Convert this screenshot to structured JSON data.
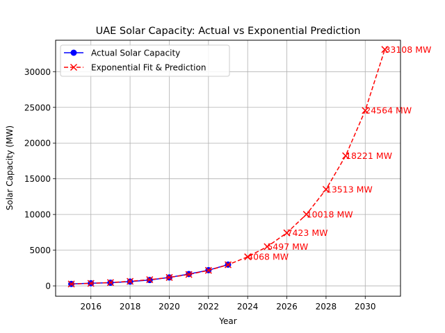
{
  "chart_data": {
    "type": "line",
    "title": "UAE Solar Capacity: Actual vs Exponential Prediction",
    "xlabel": "Year",
    "ylabel": "Solar Capacity (MW)",
    "xlim": [
      2014.2,
      2031.8
    ],
    "ylim": [
      -1450,
      34400
    ],
    "xticks": [
      2016,
      2018,
      2020,
      2022,
      2024,
      2026,
      2028,
      2030
    ],
    "yticks": [
      0,
      5000,
      10000,
      15000,
      20000,
      25000,
      30000
    ],
    "grid": true,
    "legend_position": "upper-left",
    "series": [
      {
        "name": "Actual Solar Capacity",
        "color": "#0000ff",
        "style": "solid",
        "marker": "circle",
        "x": [
          2015,
          2016,
          2017,
          2018,
          2019,
          2020,
          2021,
          2022,
          2023
        ],
        "y": [
          270,
          370,
          440,
          600,
          820,
          1180,
          1660,
          2200,
          2980
        ]
      },
      {
        "name": "Exponential Fit & Prediction",
        "color": "#ff0000",
        "style": "dashed",
        "marker": "x",
        "x": [
          2015,
          2016,
          2017,
          2018,
          2019,
          2020,
          2021,
          2022,
          2023,
          2024,
          2025,
          2026,
          2027,
          2028,
          2029,
          2030,
          2031
        ],
        "y": [
          260,
          350,
          470,
          640,
          870,
          1180,
          1600,
          2170,
          2960,
          4068,
          5497,
          7423,
          10018,
          13513,
          18221,
          24564,
          33108
        ]
      }
    ],
    "annotations": [
      {
        "x": 2024,
        "y": 4068,
        "text": "4068 MW"
      },
      {
        "x": 2025,
        "y": 5497,
        "text": "5497 MW"
      },
      {
        "x": 2026,
        "y": 7423,
        "text": "7423 MW"
      },
      {
        "x": 2027,
        "y": 10018,
        "text": "10018 MW"
      },
      {
        "x": 2028,
        "y": 13513,
        "text": "13513 MW"
      },
      {
        "x": 2029,
        "y": 18221,
        "text": "18221 MW"
      },
      {
        "x": 2030,
        "y": 24564,
        "text": "24564 MW"
      },
      {
        "x": 2031,
        "y": 33108,
        "text": "33108 MW"
      }
    ]
  }
}
